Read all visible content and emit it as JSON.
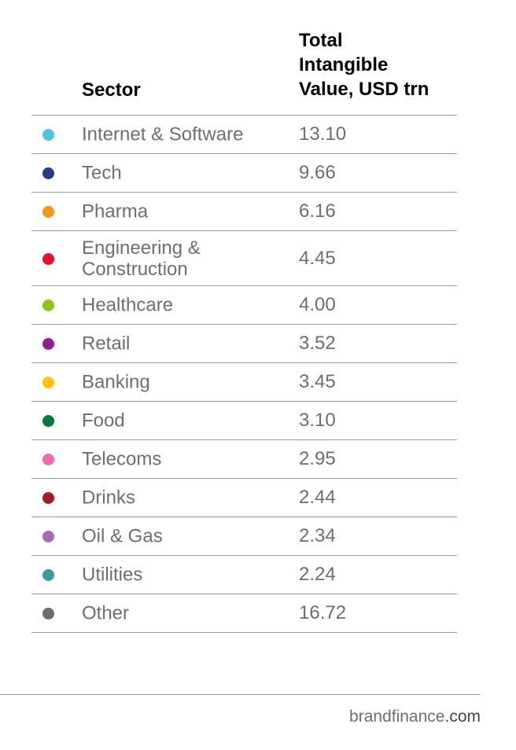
{
  "chart_data": {
    "type": "table",
    "columns": [
      "Sector",
      "Total Intangible Value, USD trn"
    ],
    "header_value_lines": [
      "Total",
      "Intangible",
      "Value, USD trn"
    ],
    "rows": [
      {
        "sector": "Internet & Software",
        "value": "13.10",
        "color": "#4fc3e0"
      },
      {
        "sector": "Tech",
        "value": "9.66",
        "color": "#1f3c86"
      },
      {
        "sector": "Pharma",
        "value": "6.16",
        "color": "#f7941d"
      },
      {
        "sector": "Engineering & Construction",
        "sector_lines": [
          "Engineering &",
          "Construction"
        ],
        "value": "4.45",
        "color": "#e8112d"
      },
      {
        "sector": "Healthcare",
        "value": "4.00",
        "color": "#8dc21f"
      },
      {
        "sector": "Retail",
        "value": "3.52",
        "color": "#8e1f8e"
      },
      {
        "sector": "Banking",
        "value": "3.45",
        "color": "#ffc20e"
      },
      {
        "sector": "Food",
        "value": "3.10",
        "color": "#007a3d"
      },
      {
        "sector": "Telecoms",
        "value": "2.95",
        "color": "#f06ba8"
      },
      {
        "sector": "Drinks",
        "value": "2.44",
        "color": "#a6191e"
      },
      {
        "sector": "Oil & Gas",
        "value": "2.34",
        "color": "#a26bb5"
      },
      {
        "sector": "Utilities",
        "value": "2.24",
        "color": "#3b9aa8"
      },
      {
        "sector": "Other",
        "value": "16.72",
        "color": "#6d6e70"
      }
    ]
  },
  "footer": {
    "brand": "brandfinance",
    "domain": ".com"
  }
}
